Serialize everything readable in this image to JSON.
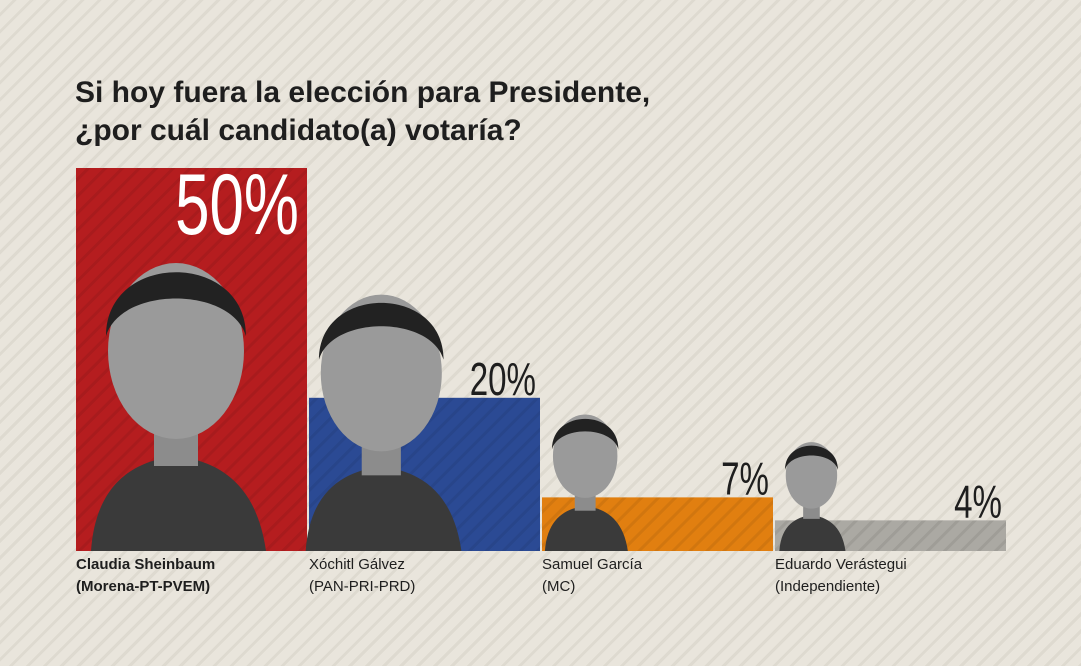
{
  "chart_data": {
    "type": "bar",
    "title": [
      "Si hoy fuera la elección para Presidente,",
      "¿por cuál candidato(a) votaría?"
    ],
    "categories": [
      "Claudia Sheinbaum",
      "Xóchitl Gálvez",
      "Samuel García",
      "Eduardo Verástegui"
    ],
    "parties": [
      "(Morena-PT-PVEM)",
      "(PAN-PRI-PRD)",
      "(MC)",
      "(Independiente)"
    ],
    "values": [
      50,
      20,
      7,
      4
    ],
    "value_labels": [
      "50%",
      "20%",
      "7%",
      "4%"
    ],
    "colors": [
      "#b51d1f",
      "#2b4a94",
      "#e17f10",
      "#aba9a3"
    ],
    "ylim": [
      0,
      50
    ]
  }
}
